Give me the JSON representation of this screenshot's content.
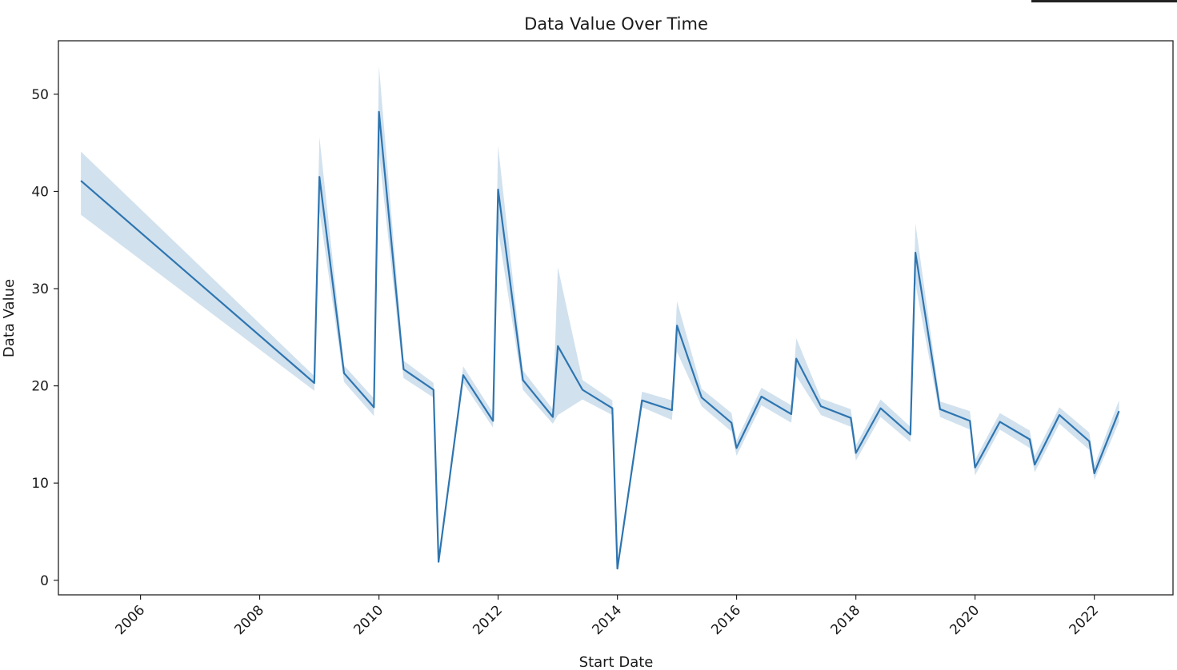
{
  "chart_data": {
    "type": "line",
    "title": "Data Value Over Time",
    "xlabel": "Start Date",
    "ylabel": "Data Value",
    "xlim": [
      "2004-08-16",
      "2023-04-28"
    ],
    "ylim": [
      -1.5,
      55.5
    ],
    "x_ticks": [
      "2006-01-01",
      "2008-01-01",
      "2010-01-01",
      "2012-01-01",
      "2014-01-01",
      "2016-01-01",
      "2018-01-01",
      "2020-01-01",
      "2022-01-01"
    ],
    "x_tick_labels": [
      "2006",
      "2008",
      "2010",
      "2012",
      "2014",
      "2016",
      "2018",
      "2020",
      "2022"
    ],
    "y_ticks": [
      0,
      10,
      20,
      30,
      40,
      50
    ],
    "y_tick_labels": [
      "0",
      "10",
      "20",
      "30",
      "40",
      "50"
    ],
    "grid": false,
    "colors": {
      "line": "#2e75b0",
      "band": "#2e75b0",
      "axes": "#222222"
    },
    "series": [
      {
        "x": [
          "2005-01-01",
          "2008-12-01",
          "2009-01-01",
          "2009-06-01",
          "2009-12-01",
          "2010-01-01",
          "2010-06-01",
          "2010-12-01",
          "2011-01-01",
          "2011-06-01",
          "2011-12-01",
          "2012-01-01",
          "2012-06-01",
          "2012-12-01",
          "2013-01-01",
          "2013-06-01",
          "2013-12-01",
          "2014-01-01",
          "2014-06-01",
          "2014-12-01",
          "2015-01-01",
          "2015-06-01",
          "2015-12-01",
          "2016-01-01",
          "2016-06-01",
          "2016-12-01",
          "2017-01-01",
          "2017-06-01",
          "2017-12-01",
          "2018-01-01",
          "2018-06-01",
          "2018-12-01",
          "2019-01-01",
          "2019-06-01",
          "2019-12-01",
          "2020-01-01",
          "2020-06-01",
          "2020-12-01",
          "2021-01-01",
          "2021-06-01",
          "2021-12-01",
          "2022-01-01",
          "2022-06-01"
        ],
        "y": [
          41.1,
          20.3,
          41.5,
          21.3,
          17.8,
          48.2,
          21.7,
          19.6,
          1.9,
          21.1,
          16.4,
          40.2,
          20.6,
          16.8,
          24.1,
          19.6,
          17.7,
          1.2,
          18.5,
          17.5,
          26.2,
          18.8,
          16.2,
          13.6,
          18.9,
          17.1,
          22.8,
          17.9,
          16.7,
          13.1,
          17.7,
          15.0,
          33.7,
          17.6,
          16.4,
          11.6,
          16.3,
          14.5,
          11.9,
          17.0,
          14.3,
          11.0,
          17.4
        ],
        "lower": [
          37.6,
          19.5,
          38.0,
          20.4,
          16.9,
          44.0,
          20.8,
          18.8,
          1.9,
          20.3,
          15.7,
          36.0,
          19.6,
          16.1,
          17.0,
          18.6,
          17.0,
          1.2,
          17.8,
          16.5,
          23.5,
          17.9,
          15.3,
          12.8,
          18.0,
          16.2,
          21.0,
          17.0,
          15.8,
          12.3,
          16.8,
          14.2,
          30.5,
          16.8,
          15.5,
          10.8,
          15.5,
          13.6,
          11.1,
          16.1,
          13.4,
          10.3,
          16.3
        ],
        "upper": [
          44.1,
          21.0,
          45.6,
          22.1,
          18.7,
          52.9,
          22.6,
          20.3,
          1.9,
          22.0,
          17.2,
          44.7,
          21.6,
          17.6,
          32.2,
          20.6,
          18.5,
          1.2,
          19.4,
          18.5,
          28.7,
          19.7,
          17.2,
          14.4,
          19.8,
          18.0,
          24.9,
          18.7,
          17.6,
          13.9,
          18.6,
          15.8,
          36.7,
          18.4,
          17.4,
          12.4,
          17.2,
          15.4,
          12.8,
          17.8,
          15.2,
          11.8,
          18.5
        ]
      }
    ]
  }
}
